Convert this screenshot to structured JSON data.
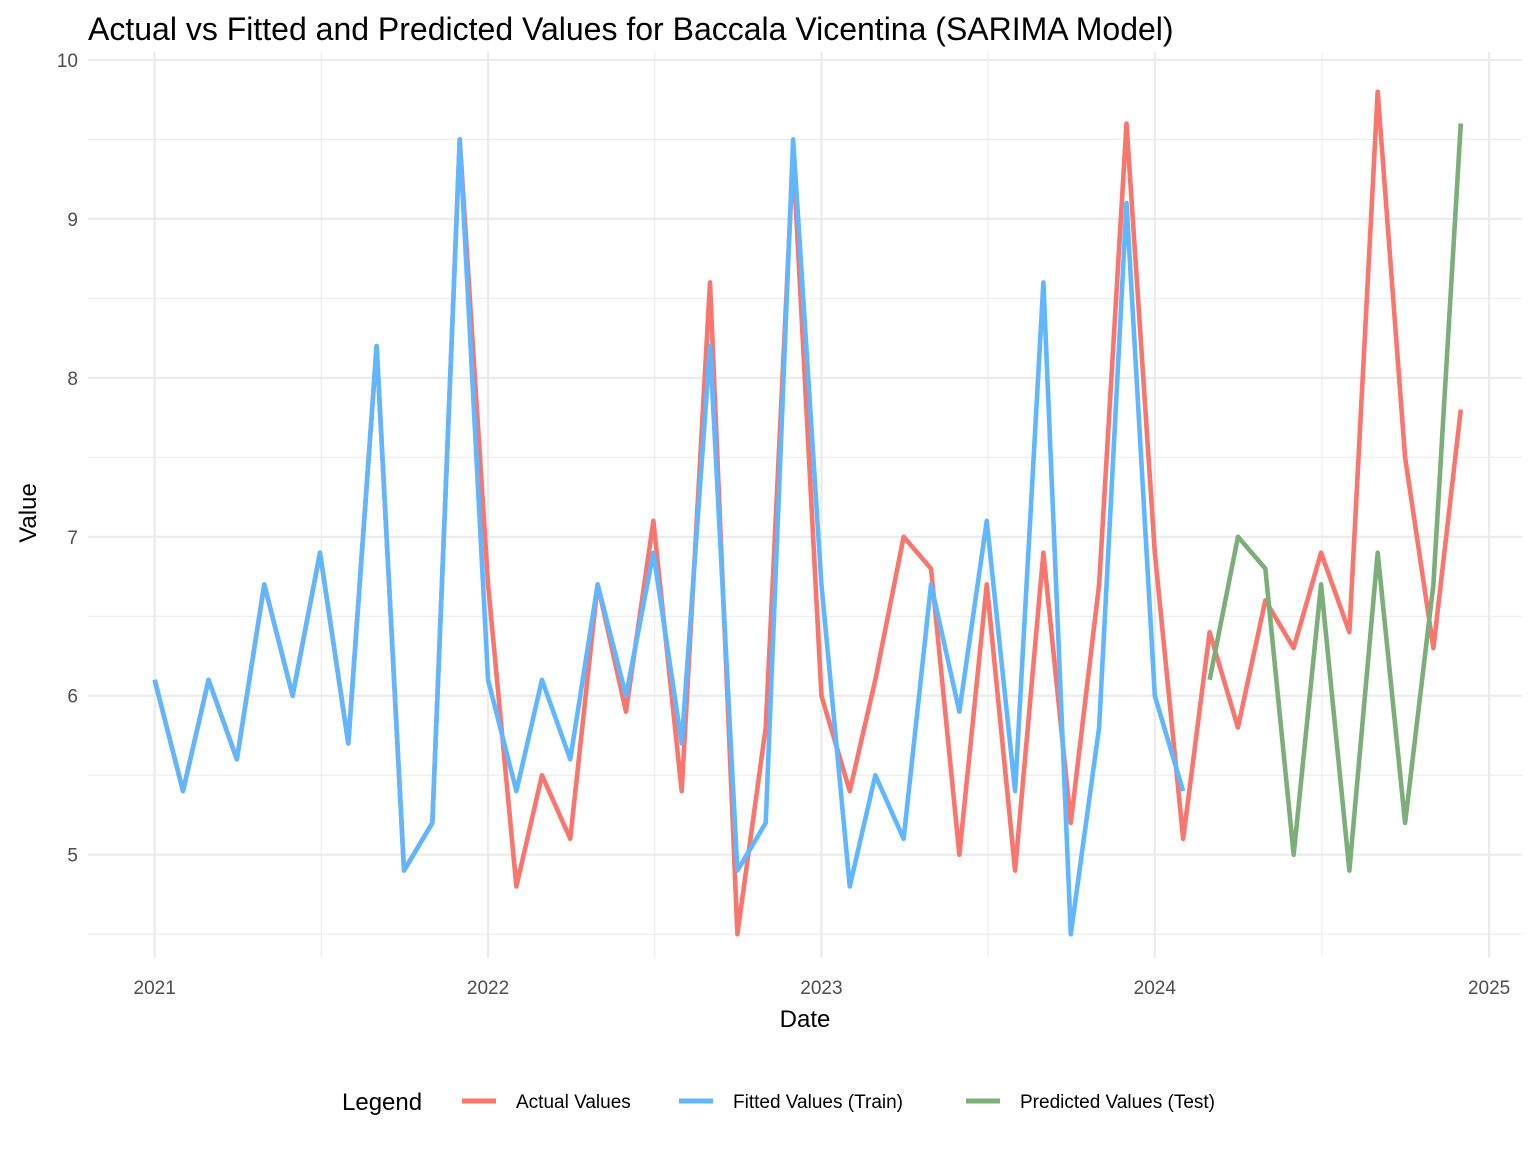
{
  "chart_data": {
    "type": "line",
    "title": "Actual vs Fitted and Predicted Values for Baccala Vicentina (SARIMA Model)",
    "xlabel": "Date",
    "ylabel": "Value",
    "xlim": [
      "2020-10-20",
      "2025-02-06"
    ],
    "ylim": [
      4.35,
      10.05
    ],
    "x_ticks": [
      "2021-01-01",
      "2022-01-01",
      "2023-01-01",
      "2024-01-01",
      "2025-01-01"
    ],
    "x_tick_labels": [
      "2021",
      "2022",
      "2023",
      "2024",
      "2025"
    ],
    "y_ticks": [
      5,
      6,
      7,
      8,
      9,
      10
    ],
    "y_tick_labels": [
      "5",
      "6",
      "7",
      "8",
      "9",
      "10"
    ],
    "grid": true,
    "legend": {
      "title": "Legend",
      "position": "bottom"
    },
    "series": [
      {
        "name": "Actual Values",
        "color": "#F8766D",
        "x": [
          "2021-01-01",
          "2021-02-01",
          "2021-03-01",
          "2021-04-01",
          "2021-05-01",
          "2021-06-01",
          "2021-07-01",
          "2021-08-01",
          "2021-09-01",
          "2021-10-01",
          "2021-11-01",
          "2021-12-01",
          "2022-01-01",
          "2022-02-01",
          "2022-03-01",
          "2022-04-01",
          "2022-05-01",
          "2022-06-01",
          "2022-07-01",
          "2022-08-01",
          "2022-09-01",
          "2022-10-01",
          "2022-11-01",
          "2022-12-01",
          "2023-01-01",
          "2023-02-01",
          "2023-03-01",
          "2023-04-01",
          "2023-05-01",
          "2023-06-01",
          "2023-07-01",
          "2023-08-01",
          "2023-09-01",
          "2023-10-01",
          "2023-11-01",
          "2023-12-01",
          "2024-01-01",
          "2024-02-01",
          "2024-03-01",
          "2024-04-01",
          "2024-05-01",
          "2024-06-01",
          "2024-07-01",
          "2024-08-01",
          "2024-09-01",
          "2024-10-01",
          "2024-11-01",
          "2024-12-01"
        ],
        "y": [
          6.1,
          5.4,
          6.1,
          5.6,
          6.7,
          6.0,
          6.9,
          5.7,
          8.2,
          4.9,
          5.2,
          9.5,
          6.7,
          4.8,
          5.5,
          5.1,
          6.7,
          5.9,
          7.1,
          5.4,
          8.6,
          4.5,
          5.8,
          9.4,
          6.0,
          5.4,
          6.1,
          7.0,
          6.8,
          5.0,
          6.7,
          4.9,
          6.9,
          5.2,
          6.7,
          9.6,
          6.9,
          5.1,
          6.4,
          5.8,
          6.6,
          6.3,
          6.9,
          6.4,
          9.8,
          7.5,
          6.3,
          7.8
        ]
      },
      {
        "name": "Fitted Values (Train)",
        "color": "#61B7FF",
        "x": [
          "2021-01-01",
          "2021-02-01",
          "2021-03-01",
          "2021-04-01",
          "2021-05-01",
          "2021-06-01",
          "2021-07-01",
          "2021-08-01",
          "2021-09-01",
          "2021-10-01",
          "2021-11-01",
          "2021-12-01",
          "2022-01-01",
          "2022-02-01",
          "2022-03-01",
          "2022-04-01",
          "2022-05-01",
          "2022-06-01",
          "2022-07-01",
          "2022-08-01",
          "2022-09-01",
          "2022-10-01",
          "2022-11-01",
          "2022-12-01",
          "2023-01-01",
          "2023-02-01",
          "2023-03-01",
          "2023-04-01",
          "2023-05-01",
          "2023-06-01",
          "2023-07-01",
          "2023-08-01",
          "2023-09-01",
          "2023-10-01",
          "2023-11-01",
          "2023-12-01",
          "2024-01-01",
          "2024-02-01"
        ],
        "y": [
          6.1,
          5.4,
          6.1,
          5.6,
          6.7,
          6.0,
          6.9,
          5.7,
          8.2,
          4.9,
          5.2,
          9.5,
          6.1,
          5.4,
          6.1,
          5.6,
          6.7,
          6.0,
          6.9,
          5.7,
          8.2,
          4.9,
          5.2,
          9.5,
          6.7,
          4.8,
          5.5,
          5.1,
          6.7,
          5.9,
          7.1,
          5.4,
          8.6,
          4.5,
          5.8,
          9.1,
          6.0,
          5.4
        ]
      },
      {
        "name": "Predicted Values (Test)",
        "color": "#7CAE7A",
        "x": [
          "2024-03-01",
          "2024-04-01",
          "2024-05-01",
          "2024-06-01",
          "2024-07-01",
          "2024-08-01",
          "2024-09-01",
          "2024-10-01",
          "2024-11-01",
          "2024-12-01"
        ],
        "y": [
          6.1,
          7.0,
          6.8,
          5.0,
          6.7,
          4.9,
          6.9,
          5.2,
          6.7,
          9.6
        ]
      }
    ]
  }
}
